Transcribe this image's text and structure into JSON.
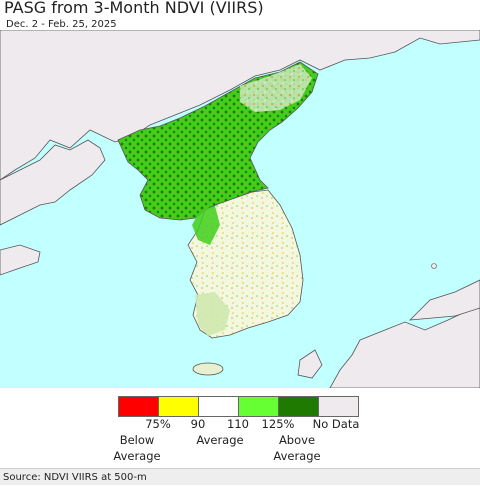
{
  "header": {
    "title": "PASG from 3-Month NDVI (VIIRS)",
    "date_range": "Dec. 2 - Feb. 25, 2025"
  },
  "legend": {
    "swatches": [
      {
        "name": "below-average-75",
        "color": "#ff0000"
      },
      {
        "name": "below-average-90",
        "color": "#ffff00"
      },
      {
        "name": "average",
        "color": "#ffffff"
      },
      {
        "name": "above-average-110",
        "color": "#66ff33"
      },
      {
        "name": "above-average-125",
        "color": "#1e7a00"
      },
      {
        "name": "no-data",
        "color": "#eeeaee"
      }
    ],
    "ticks": [
      "75%",
      "90",
      "110",
      "125%",
      "No Data"
    ],
    "categories": {
      "below_1": "Below",
      "below_2": "Average",
      "average": "Average",
      "above_1": "Above",
      "above_2": "Average"
    }
  },
  "colors": {
    "sea": "#c2ffff",
    "land_nodata": "#eeeaee",
    "border": "#555555"
  },
  "footer": {
    "source": "Source: NDVI VIIRS at 500-m"
  }
}
